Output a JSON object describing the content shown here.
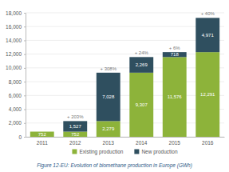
{
  "chart_data": {
    "type": "bar",
    "title": "Figure 12-EU: Evolution of biomethane production in Europe (GWh)",
    "categories": [
      "2011",
      "2012",
      "2013",
      "2014",
      "2015",
      "2016"
    ],
    "series": [
      {
        "name": "Existing production",
        "color": "#8db33a",
        "values": [
          752,
          752,
          2279,
          9307,
          11576,
          12291
        ]
      },
      {
        "name": "New production",
        "color": "#2f4f5f",
        "values": [
          null,
          1527,
          7028,
          2269,
          718,
          4971
        ]
      }
    ],
    "value_labels": [
      [
        "752",
        "752",
        "2,279",
        "9,307",
        "11,576",
        "12,291"
      ],
      [
        null,
        "1,527",
        "7,028",
        "2,269",
        "718",
        "4,971"
      ]
    ],
    "annotations": [
      {
        "category": "2012",
        "text": "+ 203%"
      },
      {
        "category": "2013",
        "text": "+ 308%"
      },
      {
        "category": "2014",
        "text": "+ 24%"
      },
      {
        "category": "2015",
        "text": "+ 6%"
      },
      {
        "category": "2016",
        "text": "+ 40%"
      }
    ],
    "ylim": [
      0,
      18000
    ],
    "yticks": [
      0,
      {
        "value": 2000,
        "label": "2,000"
      },
      {
        "value": 4000,
        "label": "4,000"
      },
      {
        "value": 6000,
        "label": "6,000"
      },
      {
        "value": 8000,
        "label": "8,000"
      },
      {
        "value": 10000,
        "label": "10,000"
      },
      {
        "value": 12000,
        "label": "12,000"
      },
      {
        "value": 14000,
        "label": "14,000"
      },
      {
        "value": 16000,
        "label": "16,000"
      },
      {
        "value": 18000,
        "label": "18,000"
      }
    ],
    "stacked": true,
    "data_labels": true,
    "grid": true,
    "legend": "bottom"
  }
}
